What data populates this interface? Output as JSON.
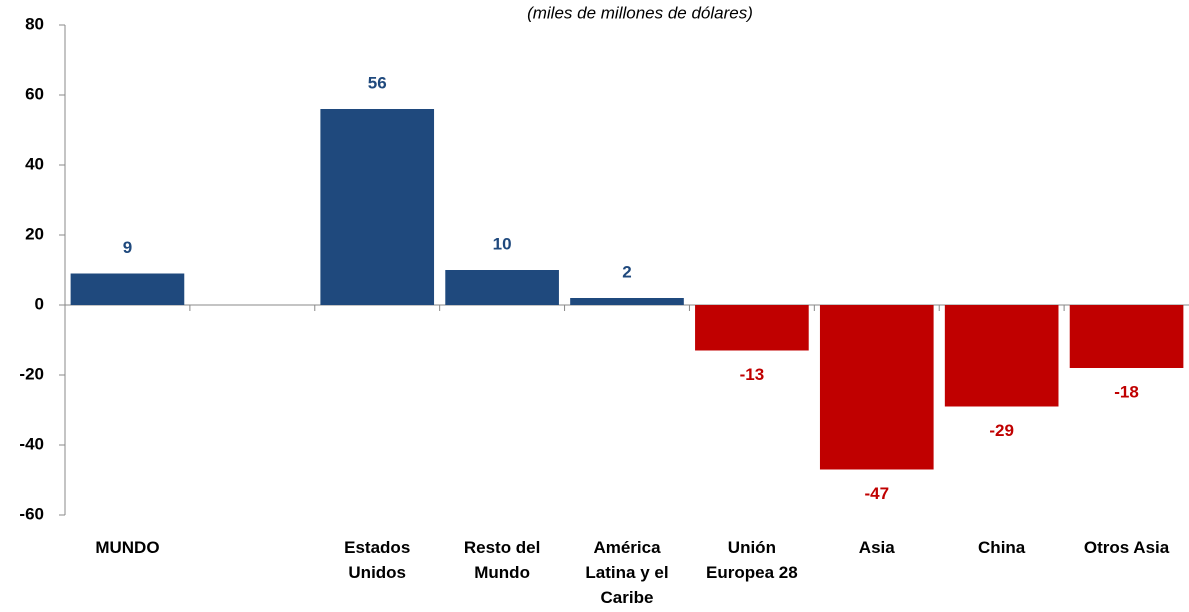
{
  "chart_data": {
    "type": "bar",
    "subtitle": "(miles de millones de dólares)",
    "categories": [
      "MUNDO",
      null,
      "Estados Unidos",
      "Resto del Mundo",
      "América Latina y el Caribe",
      "Unión Europea 28",
      "Asia",
      "China",
      "Otros Asia"
    ],
    "values": [
      9,
      null,
      56,
      10,
      2,
      -13,
      -47,
      -29,
      -18
    ],
    "positive_color": "#1f497d",
    "negative_color": "#c00000",
    "ylim": [
      -60,
      80
    ],
    "yticks": [
      -60,
      -40,
      -20,
      0,
      20,
      40,
      60,
      80
    ],
    "grid": false
  }
}
